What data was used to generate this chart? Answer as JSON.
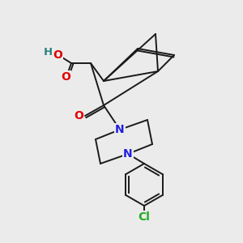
{
  "background_color": "#ebebeb",
  "atom_colors": {
    "C": "#1a1a1a",
    "O": "#e00000",
    "N": "#2020dd",
    "Cl": "#22aa22",
    "H": "#2a8080"
  },
  "figsize": [
    3.0,
    3.0
  ],
  "dpi": 100
}
